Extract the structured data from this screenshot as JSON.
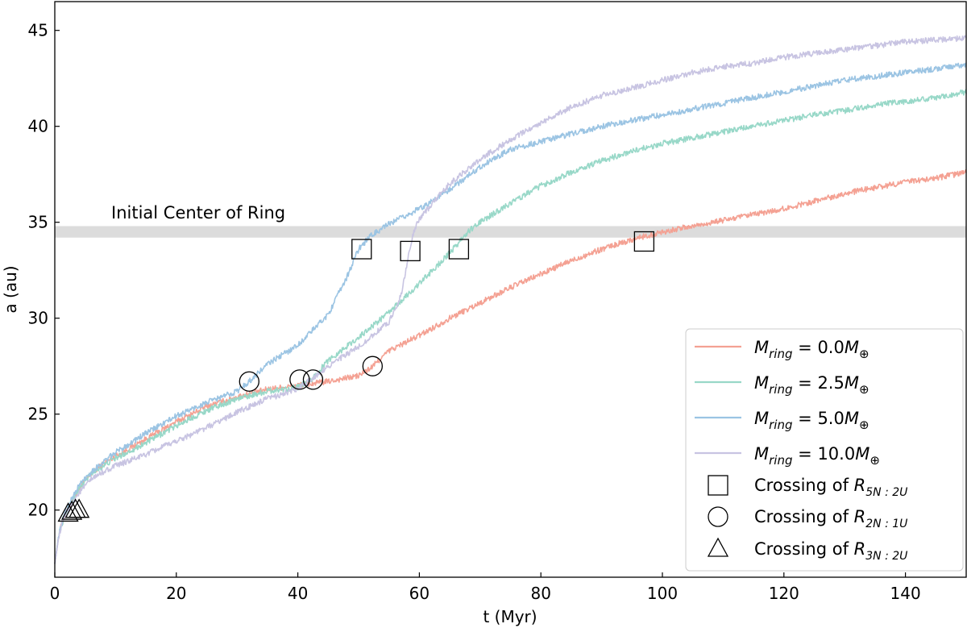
{
  "chart_data": {
    "type": "line",
    "xlabel": "t (Myr)",
    "ylabel": "a (au)",
    "xlim": [
      0,
      150
    ],
    "ylim": [
      16.5,
      46.5
    ],
    "xticks": [
      0,
      20,
      40,
      60,
      80,
      100,
      120,
      140
    ],
    "yticks": [
      20,
      25,
      30,
      35,
      40,
      45
    ],
    "ring_band": {
      "center": 34.5,
      "half_width": 0.3,
      "label": "Initial Center of Ring",
      "color": "#dcdcdc"
    },
    "series": [
      {
        "name": "M_ring = 0.0M⊕",
        "legend_mass": "0.0",
        "color": "#f4a193",
        "points": [
          [
            0,
            17.2
          ],
          [
            0.7,
            18.8
          ],
          [
            1.5,
            19.6
          ],
          [
            2.5,
            20.2
          ],
          [
            4,
            21.1
          ],
          [
            6,
            21.9
          ],
          [
            8,
            22.4
          ],
          [
            10,
            22.8
          ],
          [
            15,
            23.7
          ],
          [
            20,
            24.6
          ],
          [
            25,
            25.4
          ],
          [
            30,
            25.9
          ],
          [
            35,
            26.3
          ],
          [
            40,
            26.5
          ],
          [
            45,
            26.7
          ],
          [
            50,
            27.0
          ],
          [
            52,
            27.4
          ],
          [
            55,
            28.3
          ],
          [
            60,
            29.1
          ],
          [
            65,
            30.0
          ],
          [
            70,
            30.8
          ],
          [
            75,
            31.6
          ],
          [
            80,
            32.3
          ],
          [
            85,
            33.0
          ],
          [
            90,
            33.6
          ],
          [
            95,
            34.1
          ],
          [
            100,
            34.5
          ],
          [
            105,
            34.8
          ],
          [
            110,
            35.1
          ],
          [
            115,
            35.4
          ],
          [
            120,
            35.7
          ],
          [
            125,
            36.1
          ],
          [
            130,
            36.5
          ],
          [
            135,
            36.8
          ],
          [
            140,
            37.1
          ],
          [
            145,
            37.3
          ],
          [
            150,
            37.6
          ]
        ]
      },
      {
        "name": "M_ring = 2.5M⊕",
        "legend_mass": "2.5",
        "color": "#98d8c8",
        "points": [
          [
            0,
            17.2
          ],
          [
            0.7,
            18.8
          ],
          [
            1.5,
            19.6
          ],
          [
            2.5,
            20.3
          ],
          [
            4,
            21.1
          ],
          [
            6,
            21.9
          ],
          [
            8,
            22.3
          ],
          [
            10,
            22.7
          ],
          [
            15,
            23.5
          ],
          [
            20,
            24.4
          ],
          [
            25,
            25.2
          ],
          [
            30,
            25.8
          ],
          [
            35,
            26.2
          ],
          [
            40,
            26.4
          ],
          [
            42,
            26.7
          ],
          [
            45,
            27.8
          ],
          [
            50,
            29.0
          ],
          [
            55,
            30.3
          ],
          [
            60,
            31.8
          ],
          [
            65,
            33.4
          ],
          [
            68,
            34.5
          ],
          [
            70,
            35.0
          ],
          [
            75,
            36.0
          ],
          [
            80,
            36.9
          ],
          [
            85,
            37.6
          ],
          [
            90,
            38.2
          ],
          [
            95,
            38.7
          ],
          [
            100,
            39.1
          ],
          [
            105,
            39.4
          ],
          [
            110,
            39.7
          ],
          [
            115,
            40.0
          ],
          [
            120,
            40.3
          ],
          [
            125,
            40.6
          ],
          [
            130,
            40.8
          ],
          [
            135,
            41.1
          ],
          [
            140,
            41.3
          ],
          [
            145,
            41.5
          ],
          [
            150,
            41.8
          ]
        ]
      },
      {
        "name": "M_ring = 5.0M⊕",
        "legend_mass": "5.0",
        "color": "#9bc4e3",
        "points": [
          [
            0,
            17.2
          ],
          [
            0.7,
            18.8
          ],
          [
            1.5,
            19.7
          ],
          [
            2.5,
            20.4
          ],
          [
            4,
            21.3
          ],
          [
            6,
            22.0
          ],
          [
            8,
            22.5
          ],
          [
            10,
            23.0
          ],
          [
            15,
            24.0
          ],
          [
            20,
            24.9
          ],
          [
            25,
            25.6
          ],
          [
            30,
            26.2
          ],
          [
            32,
            26.7
          ],
          [
            35,
            27.6
          ],
          [
            40,
            28.6
          ],
          [
            45,
            30.2
          ],
          [
            48,
            32.1
          ],
          [
            50,
            33.6
          ],
          [
            52,
            34.3
          ],
          [
            55,
            34.9
          ],
          [
            60,
            35.7
          ],
          [
            65,
            36.7
          ],
          [
            70,
            37.9
          ],
          [
            75,
            38.8
          ],
          [
            80,
            39.2
          ],
          [
            85,
            39.6
          ],
          [
            90,
            40.0
          ],
          [
            95,
            40.3
          ],
          [
            100,
            40.6
          ],
          [
            105,
            40.9
          ],
          [
            110,
            41.2
          ],
          [
            115,
            41.5
          ],
          [
            120,
            41.8
          ],
          [
            125,
            42.1
          ],
          [
            130,
            42.4
          ],
          [
            135,
            42.6
          ],
          [
            140,
            42.8
          ],
          [
            145,
            43.0
          ],
          [
            150,
            43.2
          ]
        ]
      },
      {
        "name": "M_ring = 10.0M⊕",
        "legend_mass": "10.0",
        "color": "#c8c4e2",
        "points": [
          [
            0,
            17.2
          ],
          [
            0.7,
            18.7
          ],
          [
            1.5,
            19.6
          ],
          [
            2.5,
            20.2
          ],
          [
            4,
            20.9
          ],
          [
            6,
            21.6
          ],
          [
            8,
            22.0
          ],
          [
            10,
            22.3
          ],
          [
            15,
            22.9
          ],
          [
            20,
            23.6
          ],
          [
            25,
            24.3
          ],
          [
            30,
            25.1
          ],
          [
            35,
            25.8
          ],
          [
            40,
            26.3
          ],
          [
            45,
            27.5
          ],
          [
            50,
            28.5
          ],
          [
            55,
            29.8
          ],
          [
            57,
            31.2
          ],
          [
            58,
            32.9
          ],
          [
            59,
            34.4
          ],
          [
            60,
            35.2
          ],
          [
            65,
            37.0
          ],
          [
            70,
            38.3
          ],
          [
            75,
            39.3
          ],
          [
            80,
            40.2
          ],
          [
            85,
            41.0
          ],
          [
            90,
            41.6
          ],
          [
            95,
            42.0
          ],
          [
            100,
            42.4
          ],
          [
            105,
            42.8
          ],
          [
            110,
            43.1
          ],
          [
            115,
            43.3
          ],
          [
            120,
            43.6
          ],
          [
            125,
            43.8
          ],
          [
            130,
            44.0
          ],
          [
            135,
            44.2
          ],
          [
            140,
            44.4
          ],
          [
            145,
            44.5
          ],
          [
            150,
            44.6
          ]
        ]
      }
    ],
    "markers": {
      "squares": [
        [
          50.5,
          33.6
        ],
        [
          58.5,
          33.5
        ],
        [
          66.5,
          33.6
        ],
        [
          97,
          34.0
        ]
      ],
      "circles": [
        [
          32,
          26.7
        ],
        [
          40.3,
          26.8
        ],
        [
          42.5,
          26.8
        ],
        [
          52.3,
          27.5
        ]
      ],
      "triangles": [
        [
          2.2,
          19.8
        ],
        [
          2.8,
          19.9
        ],
        [
          3.4,
          20.0
        ],
        [
          4.0,
          20.0
        ]
      ]
    },
    "legend": {
      "placement": "lower-right",
      "lhs_prefix": "M",
      "lhs_sub": "ring",
      "eq": " = ",
      "mass_suffix": "M",
      "earth_symbol": "⊕",
      "marker_entries": [
        {
          "marker": "square",
          "text": "Crossing of R",
          "sub": "5N : 2U"
        },
        {
          "marker": "circle",
          "text": "Crossing of R",
          "sub": "2N : 1U"
        },
        {
          "marker": "triangle",
          "text": "Crossing of R",
          "sub": "3N : 2U"
        }
      ]
    }
  }
}
